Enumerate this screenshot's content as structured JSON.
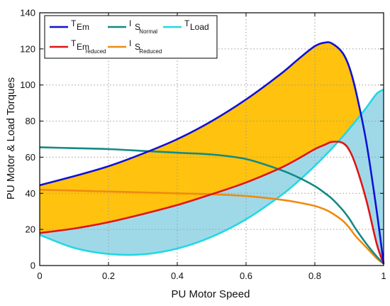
{
  "chart_data": {
    "type": "line",
    "xlabel": "PU Motor Speed",
    "ylabel": "PU Motor & Load Torques",
    "xlim": [
      0,
      1
    ],
    "ylim": [
      0,
      140
    ],
    "grid": true,
    "legend_placement": "top",
    "x_ticks": [
      "0",
      "0.2",
      "0.4",
      "0.6",
      "0.8",
      "1"
    ],
    "y_ticks": [
      "0",
      "20",
      "40",
      "60",
      "80",
      "100",
      "120",
      "140"
    ],
    "x": [
      0,
      0.1,
      0.2,
      0.3,
      0.4,
      0.5,
      0.6,
      0.7,
      0.75,
      0.8,
      0.83,
      0.85,
      0.88,
      0.9,
      0.92,
      0.95,
      0.98,
      1.0
    ],
    "series": [
      {
        "id": "tem",
        "legend_main": "T",
        "legend_sub": "Em",
        "color": "#1010d8",
        "values": [
          44.5,
          49.5,
          55,
          62,
          70,
          80,
          92,
          106,
          114,
          121.5,
          123.5,
          123,
          118,
          110,
          96,
          68,
          30,
          1
        ]
      },
      {
        "id": "is_normal",
        "legend_main": "I",
        "legend_sub": "S",
        "legend_sub2": "Normal",
        "color": "#138a85",
        "values": [
          65.5,
          65,
          64.5,
          63.5,
          62.5,
          61.5,
          59,
          53,
          49,
          44,
          40,
          37,
          31,
          26,
          20,
          12,
          5,
          1
        ]
      },
      {
        "id": "tload",
        "legend_main": "T",
        "legend_sub": "Load",
        "color": "#22d8e4",
        "values": [
          17,
          9.8,
          6.4,
          6.2,
          9.4,
          15.9,
          25.6,
          38.6,
          46.4,
          55.2,
          60.9,
          64.9,
          71.2,
          75.7,
          80.3,
          87.5,
          95.2,
          97.5
        ]
      },
      {
        "id": "tem_reduced",
        "legend_main": "T",
        "legend_sub": "Em",
        "legend_sub2": "reduced",
        "color": "#e01414",
        "values": [
          18,
          20.5,
          24,
          28.5,
          33.5,
          39.5,
          46,
          54,
          59,
          64.5,
          67,
          68.5,
          68,
          64,
          55,
          36,
          12,
          1
        ]
      },
      {
        "id": "is_reduced",
        "legend_main": "I",
        "legend_sub": "S",
        "legend_sub2": "Reduced",
        "color": "#f08a10",
        "values": [
          42,
          41.5,
          41,
          40.5,
          40,
          39.5,
          38.5,
          36.5,
          35,
          33,
          31,
          29,
          25,
          21,
          16,
          10,
          4,
          1
        ]
      }
    ],
    "fills": [
      {
        "between": [
          "tem",
          "tem_reduced"
        ],
        "color": "#ffc20e"
      },
      {
        "between": [
          "tem_reduced",
          "tload"
        ],
        "color": "#9fd9e8"
      }
    ]
  }
}
